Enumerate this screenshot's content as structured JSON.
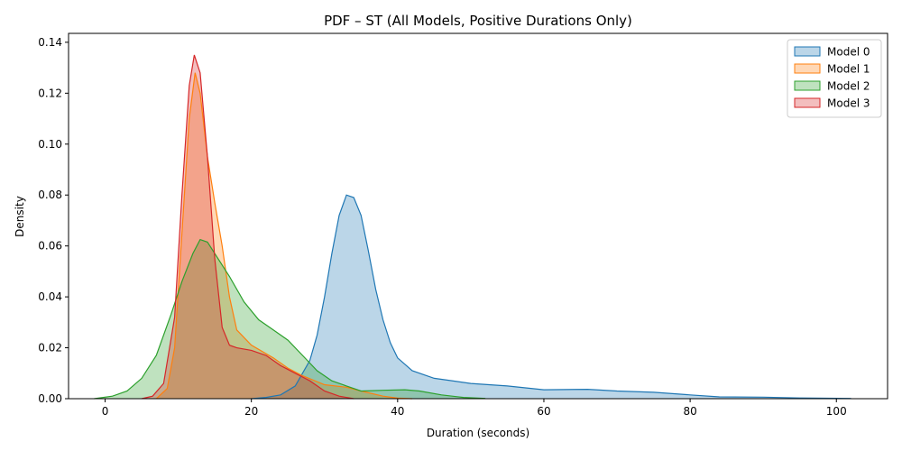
{
  "chart_data": {
    "type": "area",
    "title": "PDF – ST (All Models, Positive Durations Only)",
    "xlabel": "Duration (seconds)",
    "ylabel": "Density",
    "xlim": [
      -5,
      107
    ],
    "ylim": [
      0,
      0.1435
    ],
    "xticks": [
      0,
      20,
      40,
      60,
      80,
      100
    ],
    "yticks": [
      0.0,
      0.02,
      0.04,
      0.06,
      0.08,
      0.1,
      0.12,
      0.14
    ],
    "xtick_labels": [
      "0",
      "20",
      "40",
      "60",
      "80",
      "100"
    ],
    "ytick_labels": [
      "0.00",
      "0.02",
      "0.04",
      "0.06",
      "0.08",
      "0.10",
      "0.12",
      "0.14"
    ],
    "grid": false,
    "legend_position": "top-right",
    "series": [
      {
        "name": "Model 0",
        "color": "#1f77b4",
        "points": [
          [
            20,
            0
          ],
          [
            22,
            0.0005
          ],
          [
            24,
            0.0015
          ],
          [
            26,
            0.005
          ],
          [
            28,
            0.015
          ],
          [
            29,
            0.025
          ],
          [
            30,
            0.04
          ],
          [
            31,
            0.057
          ],
          [
            32,
            0.072
          ],
          [
            33,
            0.08
          ],
          [
            34,
            0.079
          ],
          [
            35,
            0.072
          ],
          [
            36,
            0.058
          ],
          [
            37,
            0.043
          ],
          [
            38,
            0.031
          ],
          [
            39,
            0.022
          ],
          [
            40,
            0.016
          ],
          [
            42,
            0.011
          ],
          [
            45,
            0.008
          ],
          [
            50,
            0.006
          ],
          [
            55,
            0.005
          ],
          [
            60,
            0.0035
          ],
          [
            66,
            0.0037
          ],
          [
            70,
            0.003
          ],
          [
            75,
            0.0025
          ],
          [
            80,
            0.0015
          ],
          [
            84,
            0.0007
          ],
          [
            90,
            0.0006
          ],
          [
            95,
            0.0003
          ],
          [
            102,
            0.0001
          ]
        ]
      },
      {
        "name": "Model 1",
        "color": "#ff7f0e",
        "points": [
          [
            7,
            0
          ],
          [
            8.5,
            0.004
          ],
          [
            9.5,
            0.02
          ],
          [
            10.5,
            0.065
          ],
          [
            11.5,
            0.11
          ],
          [
            12.3,
            0.128
          ],
          [
            13,
            0.12
          ],
          [
            14,
            0.095
          ],
          [
            15,
            0.077
          ],
          [
            16,
            0.06
          ],
          [
            17,
            0.04
          ],
          [
            18,
            0.027
          ],
          [
            20,
            0.021
          ],
          [
            23,
            0.016
          ],
          [
            25,
            0.012
          ],
          [
            27,
            0.009
          ],
          [
            30,
            0.0055
          ],
          [
            33,
            0.0045
          ],
          [
            35,
            0.003
          ],
          [
            38,
            0.001
          ],
          [
            40,
            0.0002
          ],
          [
            42,
            0
          ]
        ]
      },
      {
        "name": "Model 2",
        "color": "#2ca02c",
        "points": [
          [
            -1.5,
            0
          ],
          [
            1,
            0.001
          ],
          [
            3,
            0.003
          ],
          [
            5,
            0.008
          ],
          [
            7,
            0.017
          ],
          [
            9,
            0.033
          ],
          [
            10.5,
            0.046
          ],
          [
            12,
            0.057
          ],
          [
            13,
            0.0625
          ],
          [
            14,
            0.0615
          ],
          [
            15,
            0.057
          ],
          [
            17,
            0.048
          ],
          [
            19,
            0.038
          ],
          [
            21,
            0.031
          ],
          [
            23,
            0.027
          ],
          [
            25,
            0.023
          ],
          [
            27,
            0.017
          ],
          [
            29,
            0.011
          ],
          [
            31,
            0.007
          ],
          [
            33,
            0.005
          ],
          [
            35,
            0.003
          ],
          [
            38,
            0.0033
          ],
          [
            41,
            0.0035
          ],
          [
            43,
            0.003
          ],
          [
            46,
            0.0015
          ],
          [
            49,
            0.0005
          ],
          [
            52,
            0.0001
          ]
        ]
      },
      {
        "name": "Model 3",
        "color": "#d62728",
        "points": [
          [
            5,
            0
          ],
          [
            6.5,
            0.001
          ],
          [
            8,
            0.006
          ],
          [
            9.5,
            0.032
          ],
          [
            10.5,
            0.08
          ],
          [
            11.5,
            0.123
          ],
          [
            12.2,
            0.135
          ],
          [
            13,
            0.128
          ],
          [
            14,
            0.095
          ],
          [
            15,
            0.055
          ],
          [
            16,
            0.028
          ],
          [
            17,
            0.021
          ],
          [
            18,
            0.02
          ],
          [
            20,
            0.019
          ],
          [
            22,
            0.017
          ],
          [
            24,
            0.013
          ],
          [
            26,
            0.01
          ],
          [
            28,
            0.007
          ],
          [
            30,
            0.003
          ],
          [
            32,
            0.001
          ],
          [
            34,
            0
          ]
        ]
      }
    ]
  }
}
